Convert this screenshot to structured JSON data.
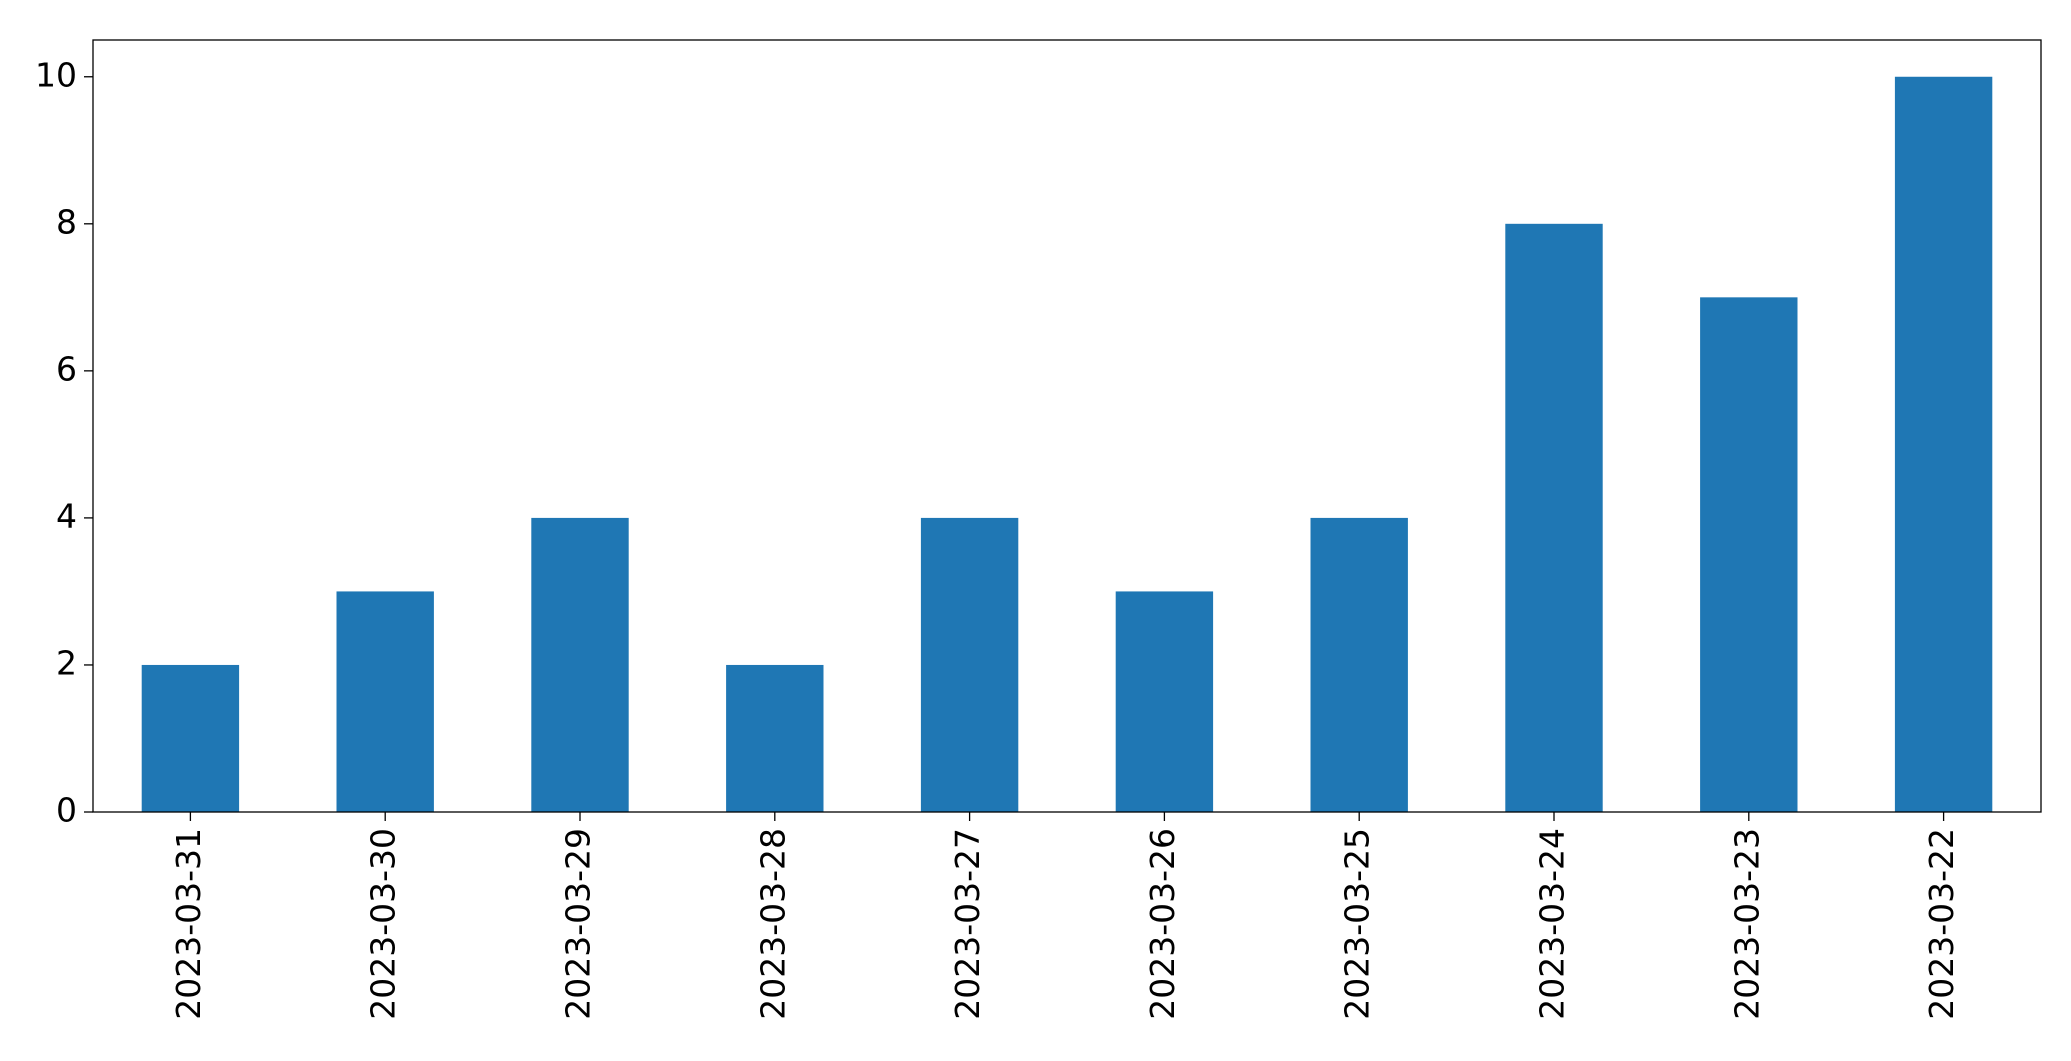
{
  "chart_data": {
    "type": "bar",
    "categories": [
      "2023-03-31",
      "2023-03-30",
      "2023-03-29",
      "2023-03-28",
      "2023-03-27",
      "2023-03-26",
      "2023-03-25",
      "2023-03-24",
      "2023-03-23",
      "2023-03-22"
    ],
    "values": [
      2,
      3,
      4,
      2,
      4,
      3,
      4,
      8,
      7,
      10
    ],
    "color": "#1f77b4",
    "ylim": [
      0,
      10.5
    ],
    "yticks": [
      0,
      2,
      4,
      6,
      8,
      10
    ],
    "grid": false
  }
}
